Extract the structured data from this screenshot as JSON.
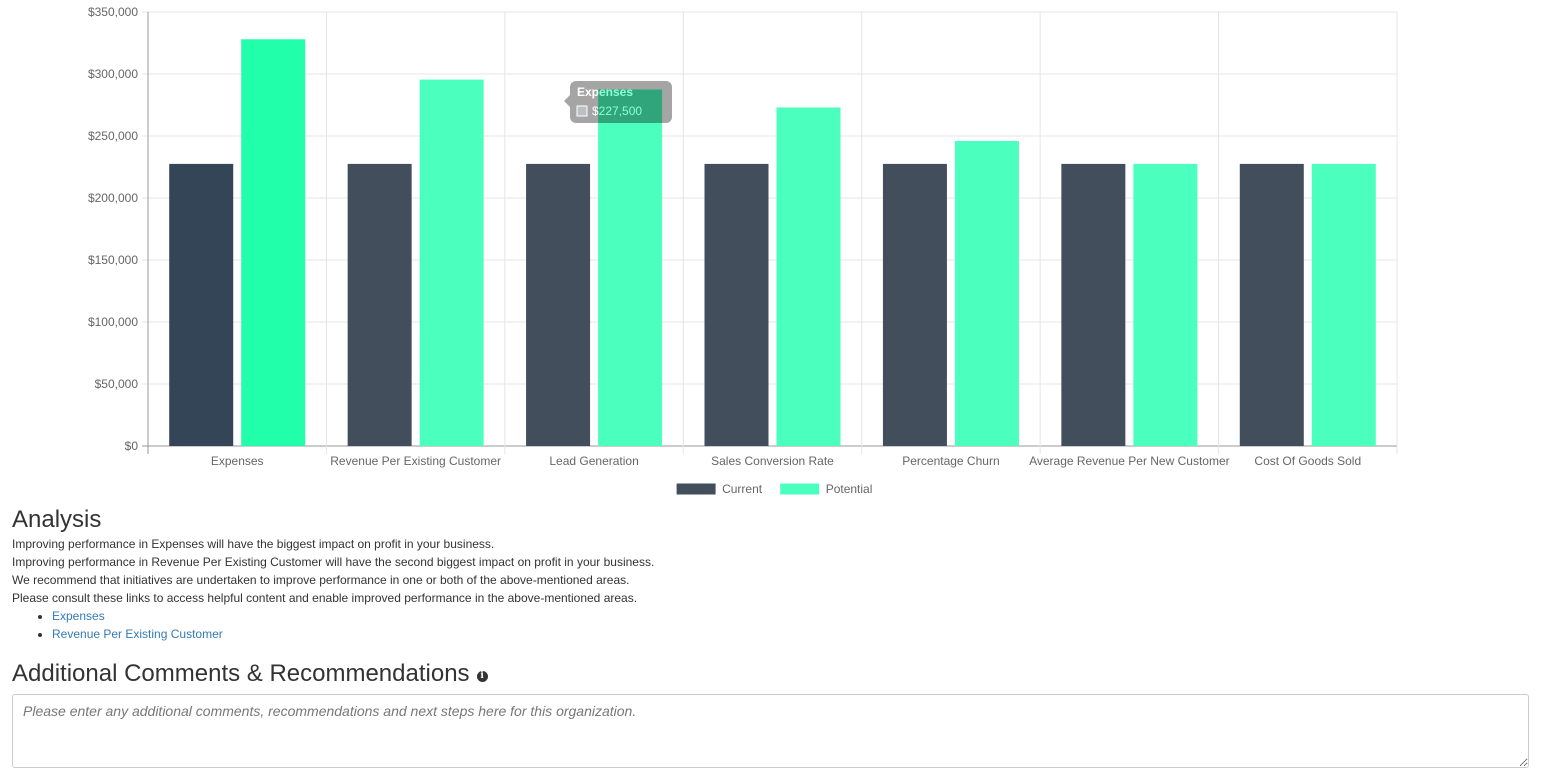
{
  "chart_data": {
    "type": "bar",
    "categories": [
      "Expenses",
      "Revenue Per Existing Customer",
      "Lead Generation",
      "Sales Conversion Rate",
      "Percentage Churn",
      "Average Revenue Per New Customer",
      "Cost Of Goods Sold"
    ],
    "series": [
      {
        "name": "Current",
        "color": "#424e5c",
        "values": [
          227500,
          227500,
          227500,
          227500,
          227500,
          227500,
          227500
        ]
      },
      {
        "name": "Potential",
        "color": "#4bffbf",
        "values": [
          328000,
          295500,
          287500,
          273000,
          246000,
          227500,
          227500
        ]
      }
    ],
    "highlighted": {
      "category": "Expenses",
      "current_color": "#344558",
      "potential_color": "#22ffaa"
    },
    "tooltip": {
      "title": "Expenses",
      "value": "$227,500"
    },
    "y_ticks": [
      "$0",
      "$50,000",
      "$100,000",
      "$150,000",
      "$200,000",
      "$250,000",
      "$300,000",
      "$350,000"
    ],
    "ylim": [
      0,
      350000
    ],
    "grid": true,
    "legend_position": "bottom"
  },
  "analysis": {
    "title": "Analysis",
    "lines": [
      "Improving performance in Expenses will have the biggest impact on profit in your business.",
      "Improving performance in Revenue Per Existing Customer will have the second biggest impact on profit in your business.",
      "We recommend that initiatives are undertaken to improve performance in one or both of the above-mentioned areas.",
      "Please consult these links to access helpful content and enable improved performance in the above-mentioned areas."
    ],
    "links": [
      "Expenses",
      "Revenue Per Existing Customer"
    ]
  },
  "comments": {
    "title": "Additional Comments & Recommendations",
    "info_icon": "info-circle-icon",
    "placeholder": "Please enter any additional comments, recommendations and next steps here for this organization."
  }
}
